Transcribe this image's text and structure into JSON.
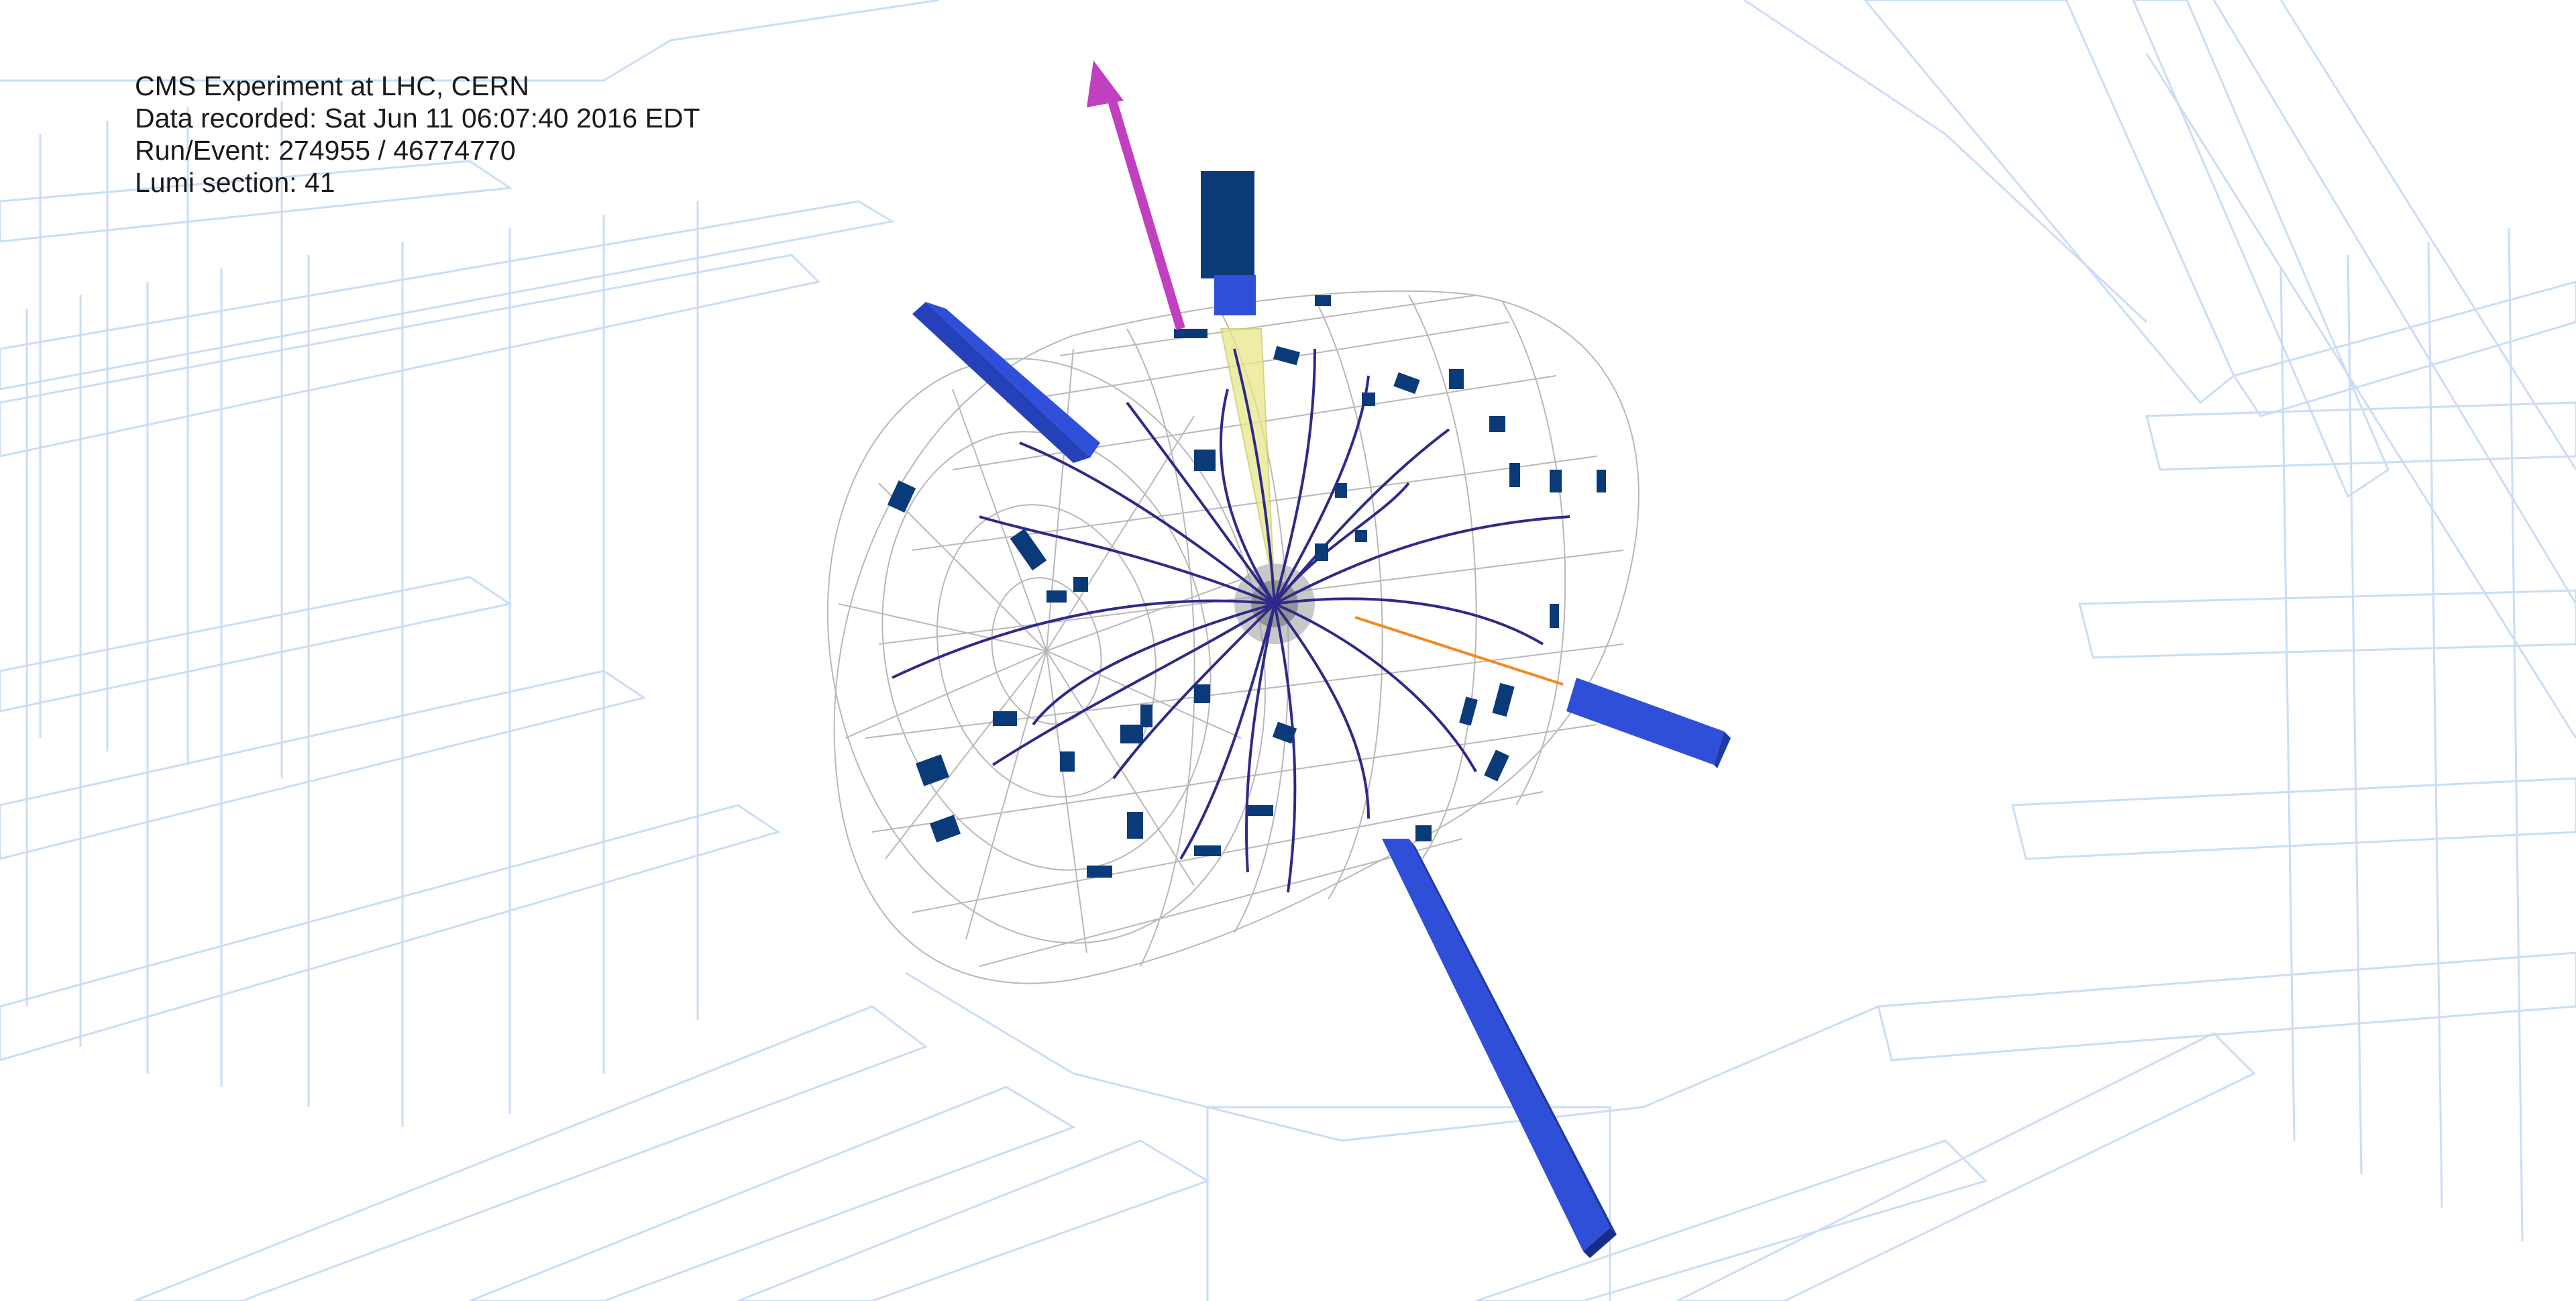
{
  "event_info": {
    "experiment": "CMS Experiment at LHC, CERN",
    "recorded": "Data recorded: Sat Jun 11 06:07:40 2016 EDT",
    "run_event": "Run/Event: 274955 / 46774770",
    "lumi": "Lumi section: 41"
  },
  "colors": {
    "background": "#ffffff",
    "detector_wireframe": "#9fc3f0",
    "tracker_mesh": "#b8b8b8",
    "tracks": "#2d2a88",
    "calorimeter_tower": "#2f4fd8",
    "calorimeter_tower_dark": "#0b3a78",
    "missing_et_arrow": "#c040c0",
    "jet_cone": "#e8e88a",
    "electron_track": "#f08a20"
  }
}
